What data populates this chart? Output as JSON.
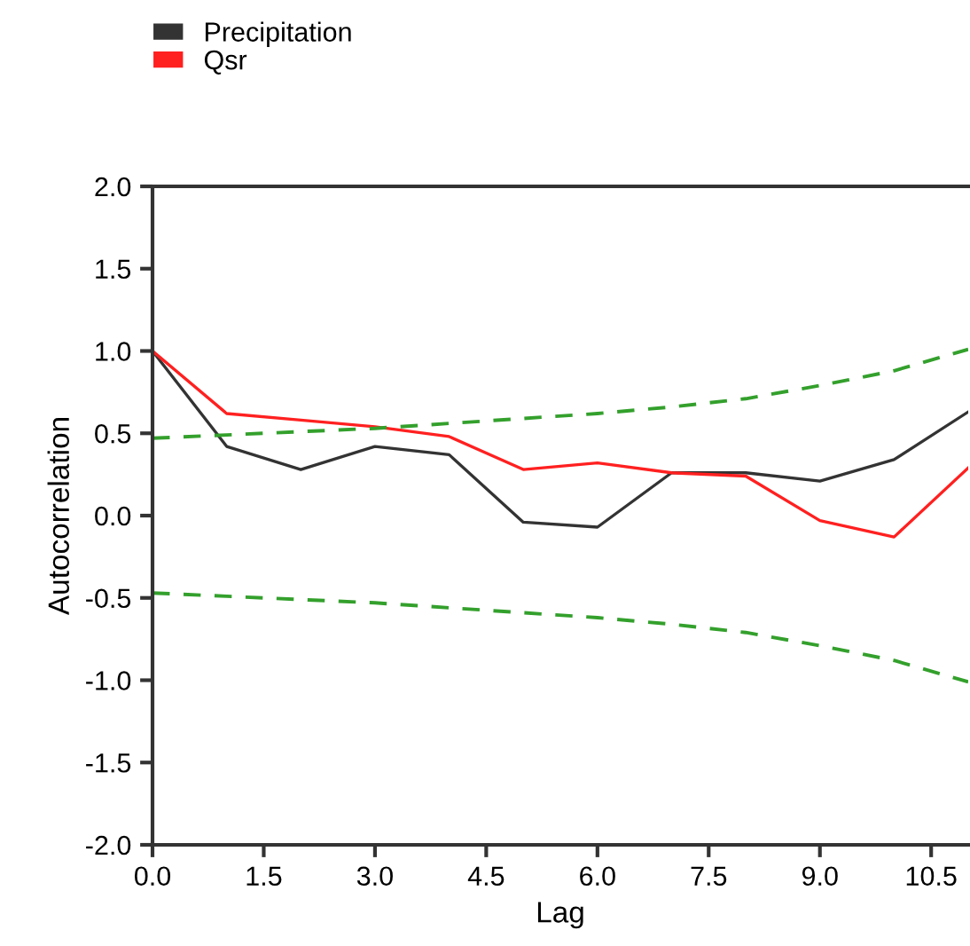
{
  "chart_data": {
    "type": "line",
    "xlabel": "Lag",
    "ylabel": "Autocorrelation",
    "x": [
      0,
      1,
      2,
      3,
      4,
      5,
      6,
      7,
      8,
      9,
      10,
      11
    ],
    "series": [
      {
        "name": "Precipitation",
        "color": "#333333",
        "values": [
          1.0,
          0.42,
          0.28,
          0.42,
          0.37,
          -0.04,
          -0.07,
          0.26,
          0.26,
          0.21,
          0.34,
          0.63
        ]
      },
      {
        "name": "Qsr",
        "color": "#ff2020",
        "values": [
          1.0,
          0.62,
          0.58,
          0.54,
          0.48,
          0.28,
          0.32,
          0.26,
          0.24,
          -0.03,
          -0.13,
          0.29
        ]
      },
      {
        "color": "#33a02c",
        "line_style": "dashed",
        "values": [
          0.47,
          0.49,
          0.51,
          0.53,
          0.56,
          0.59,
          0.62,
          0.66,
          0.71,
          0.79,
          0.88,
          1.01
        ]
      },
      {
        "color": "#33a02c",
        "line_style": "dashed",
        "values": [
          -0.47,
          -0.49,
          -0.51,
          -0.53,
          -0.56,
          -0.59,
          -0.62,
          -0.66,
          -0.71,
          -0.79,
          -0.88,
          -1.01
        ]
      }
    ],
    "xlim": [
      0,
      11
    ],
    "xticks": [
      {
        "value": 0,
        "label": "0.0"
      },
      {
        "value": 1.5,
        "label": "1.5"
      },
      {
        "value": 3,
        "label": "3.0"
      },
      {
        "value": 4.5,
        "label": "4.5"
      },
      {
        "value": 6,
        "label": "6.0"
      },
      {
        "value": 7.5,
        "label": "7.5"
      },
      {
        "value": 9,
        "label": "9.0"
      },
      {
        "value": 10.5,
        "label": "10.5"
      }
    ],
    "ylim": [
      -2,
      2
    ],
    "yticks": [
      {
        "value": -2,
        "label": "-2.0"
      },
      {
        "value": -1.5,
        "label": "-1.5"
      },
      {
        "value": -1,
        "label": "-1.0"
      },
      {
        "value": -0.5,
        "label": "-0.5"
      },
      {
        "value": 0,
        "label": "0.0"
      },
      {
        "value": 0.5,
        "label": "0.5"
      },
      {
        "value": 1,
        "label": "1.0"
      },
      {
        "value": 1.5,
        "label": "1.5"
      },
      {
        "value": 2,
        "label": "2.0"
      }
    ],
    "grid": false,
    "legend": "top left"
  }
}
